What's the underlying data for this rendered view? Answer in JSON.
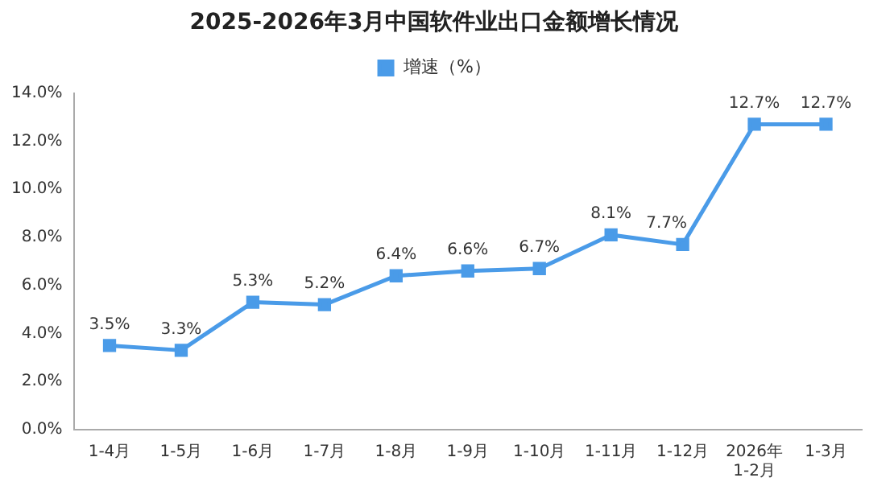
{
  "chart_data": {
    "type": "line",
    "title": "2025-2026年3月中国软件业出口金额增长情况",
    "categories": [
      "1-4月",
      "1-5月",
      "1-6月",
      "1-7月",
      "1-8月",
      "1-9月",
      "1-10月",
      "1-11月",
      "1-12月",
      "2026年\n1-2月",
      "1-3月"
    ],
    "series": [
      {
        "name": "增速（%）",
        "color": "#4a9be8",
        "values": [
          3.5,
          3.3,
          5.3,
          5.2,
          6.4,
          6.6,
          6.7,
          8.1,
          7.7,
          12.7,
          12.7
        ],
        "value_labels": [
          "3.5%",
          "3.3%",
          "5.3%",
          "5.2%",
          "6.4%",
          "6.6%",
          "6.7%",
          "8.1%",
          "7.7%",
          "12.7%",
          "12.7%"
        ]
      }
    ],
    "ylim": [
      0,
      14
    ],
    "yticks": [
      {
        "value": 0,
        "label": "0.0%"
      },
      {
        "value": 2,
        "label": "2.0%"
      },
      {
        "value": 4,
        "label": "4.0%"
      },
      {
        "value": 6,
        "label": "6.0%"
      },
      {
        "value": 8,
        "label": "8.0%"
      },
      {
        "value": 10,
        "label": "10.0%"
      },
      {
        "value": 12,
        "label": "12.0%"
      },
      {
        "value": 14,
        "label": "14.0%"
      }
    ],
    "grid": false,
    "legend": "top",
    "marker": "square",
    "line_style": "solid"
  }
}
